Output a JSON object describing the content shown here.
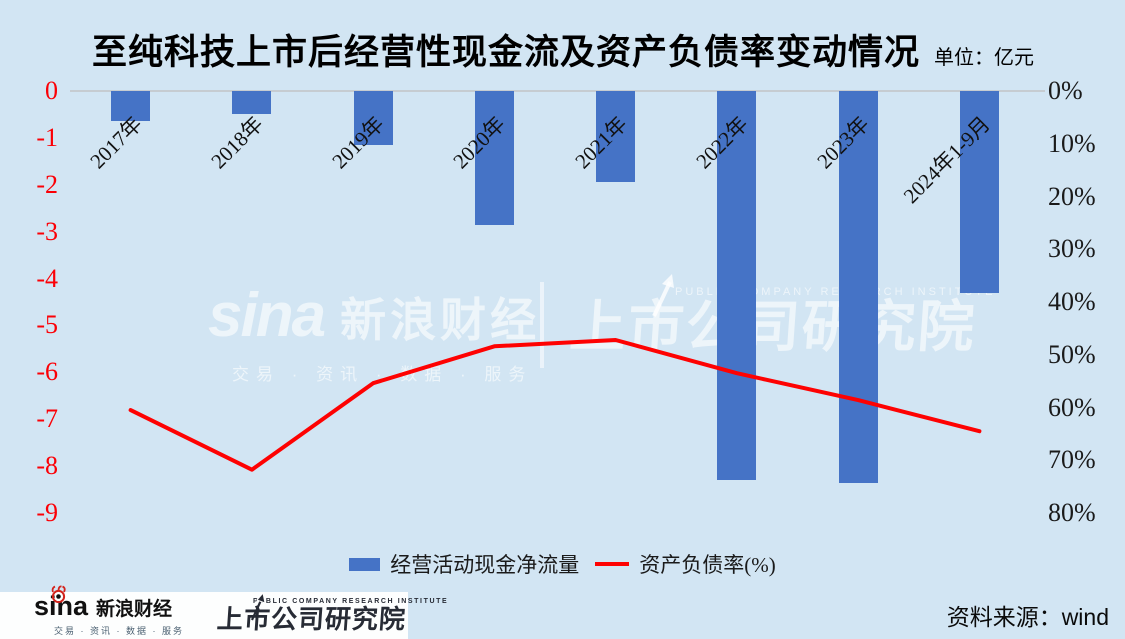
{
  "title": "至纯科技上市后经营性现金流及资产负债率变动情况",
  "unit_label": "单位：亿元",
  "colors": {
    "background": "#d2e5f3",
    "bar": "#4573c6",
    "line": "#fe0202",
    "left_axis_text": "#fb0006",
    "right_axis_text": "#1a1a1a",
    "gridline": "#c6ccd1",
    "sina_red": "#d3231c",
    "logo_dark": "#272b35"
  },
  "chart_data": {
    "type": "combo",
    "title": "至纯科技上市后经营性现金流及资产负债率变动情况",
    "unit": "亿元",
    "categories": [
      "2017年",
      "2018年",
      "2019年",
      "2020年",
      "2021年",
      "2022年",
      "2023年",
      "2024年1-9月"
    ],
    "series": [
      {
        "name": "经营活动现金净流量",
        "type": "bar",
        "yaxis": "left",
        "unit": "亿元",
        "color": "#4573c6",
        "values": [
          -0.65,
          -0.5,
          -1.15,
          -2.85,
          -1.95,
          -8.3,
          -8.35,
          -4.3
        ]
      },
      {
        "name": "资产负债率(%)",
        "type": "line",
        "yaxis": "right",
        "unit": "%",
        "color": "#fe0202",
        "values": [
          60.5,
          71.8,
          55.4,
          48.4,
          47.2,
          53.5,
          58.6,
          64.5
        ]
      }
    ],
    "left_axis": {
      "min": -9,
      "max": 0,
      "tick_step": 1,
      "ticks": [
        "0",
        "-1",
        "-2",
        "-3",
        "-4",
        "-5",
        "-6",
        "-7",
        "-8",
        "-9"
      ]
    },
    "right_axis": {
      "min": 0,
      "max": 80,
      "tick_step": 10,
      "inverted": true,
      "ticks": [
        "0%",
        "10%",
        "20%",
        "30%",
        "40%",
        "50%",
        "60%",
        "70%",
        "80%"
      ]
    },
    "legend_position": "bottom",
    "grid": "zero-line-only"
  },
  "legend": {
    "bar_label": "经营活动现金净流量",
    "line_label": "资产负债率(%)"
  },
  "watermark": {
    "brand": "sina",
    "brand_cn": "新浪财经",
    "tagline": "交易 · 资讯 · 数据 · 服务",
    "institute_top": "PUBLIC COMPANY RESEARCH INSTITUTE",
    "institute_main": "上市公司研究院"
  },
  "footer": {
    "sina_brand": "sina",
    "sina_brand_cn": "新浪财经",
    "sina_tagline": "交易 · 资讯 · 数据 · 服务",
    "institute_top": "PUBLIC COMPANY RESEARCH INSTITUTE",
    "institute_main": "上市公司研究院",
    "source": "资料来源：wind"
  }
}
